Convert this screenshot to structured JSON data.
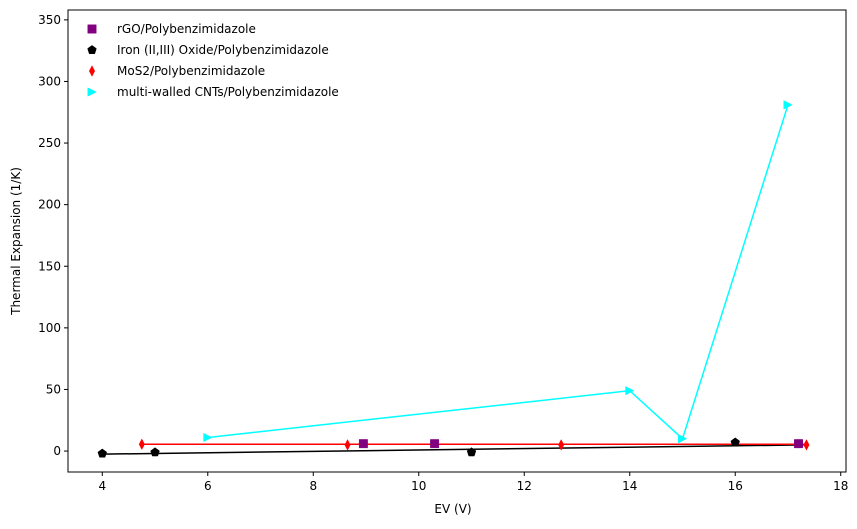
{
  "chart_data": {
    "type": "scatter",
    "xlabel": "EV (V)",
    "ylabel": "Thermal Expansion (1/K)",
    "xlim": [
      3.35,
      18.1
    ],
    "ylim": [
      -17,
      358
    ],
    "xticks": [
      4,
      6,
      8,
      10,
      12,
      14,
      16,
      18
    ],
    "yticks": [
      0,
      50,
      100,
      150,
      200,
      250,
      300,
      350
    ],
    "grid": false,
    "legend_position": "top-left",
    "series": [
      {
        "name": "rGO/Polybenzimidazole",
        "color": "#800080",
        "marker": "square",
        "points": [
          [
            8.95,
            6
          ],
          [
            10.3,
            6
          ],
          [
            17.2,
            6
          ]
        ],
        "fit_line": false
      },
      {
        "name": "Iron (II,III) Oxide/Polybenzimidazole",
        "color": "#000000",
        "marker": "pentagon",
        "points": [
          [
            4.0,
            -2
          ],
          [
            5.0,
            -1
          ],
          [
            11.0,
            -1
          ],
          [
            16.0,
            7
          ]
        ],
        "fit_line": true,
        "fit": [
          [
            4.0,
            -2.5
          ],
          [
            17.3,
            5
          ]
        ]
      },
      {
        "name": "MoS2/Polybenzimidazole",
        "color": "#ff0000",
        "marker": "thin_diamond",
        "points": [
          [
            4.75,
            5.5
          ],
          [
            8.65,
            5
          ],
          [
            12.7,
            5
          ],
          [
            17.35,
            5
          ]
        ],
        "fit_line": true,
        "fit": [
          [
            4.75,
            5.5
          ],
          [
            17.35,
            5.5
          ]
        ]
      },
      {
        "name": "multi-walled CNTs/Polybenzimidazole",
        "color": "#00ffff",
        "marker": "triangle_right",
        "points": [
          [
            6.0,
            11
          ],
          [
            14.0,
            49
          ],
          [
            15.0,
            10
          ],
          [
            17.0,
            281
          ]
        ],
        "fit_line": true,
        "connect_points": true
      }
    ]
  }
}
